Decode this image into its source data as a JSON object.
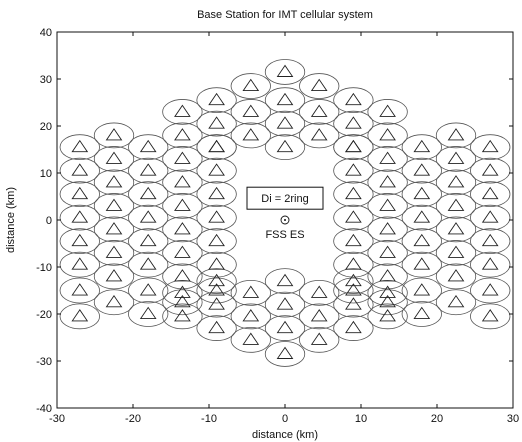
{
  "chart_data": {
    "type": "scatter",
    "title": "Base Station for IMT cellular system",
    "xlabel": "distance (km)",
    "ylabel": "distance (km)",
    "xlim": [
      -30,
      30
    ],
    "ylim": [
      -40,
      40
    ],
    "xticks": [
      -30,
      -20,
      -10,
      0,
      10,
      20,
      30
    ],
    "yticks": [
      -40,
      -30,
      -20,
      -10,
      0,
      10,
      20,
      30,
      40
    ],
    "xtick_labels": [
      "-30",
      "-20",
      "-10",
      "0",
      "10",
      "20",
      "30"
    ],
    "ytick_labels": [
      "-40",
      "-30",
      "-20",
      "-10",
      "0",
      "10",
      "20",
      "30",
      "40"
    ],
    "grid": false,
    "legend": "none",
    "cell_radius_km": 2.6,
    "series": [
      {
        "marker": "triangle",
        "x": [
          0,
          -4.5,
          4.5,
          -9,
          0,
          9,
          -13.5,
          -4.5,
          4.5,
          13.5,
          -9,
          0,
          9,
          -13.5,
          -4.5,
          4.5,
          13.5,
          -9,
          0,
          9,
          -27,
          -22.5,
          -18,
          -13.5,
          -9,
          9,
          13.5,
          18,
          22.5,
          27,
          -27,
          -22.5,
          -18,
          -13.5,
          -9,
          9,
          13.5,
          18,
          22.5,
          27,
          -27,
          -22.5,
          -18,
          -13.5,
          -9,
          9,
          13.5,
          18,
          22.5,
          27,
          -27,
          -22.5,
          -18,
          -13.5,
          -9,
          9,
          13.5,
          18,
          22.5,
          27,
          -27,
          -22.5,
          -18,
          -13.5,
          -9,
          9,
          13.5,
          18,
          22.5,
          27,
          -27,
          -22.5,
          -18,
          -13.5,
          -9,
          9,
          13.5,
          18,
          22.5,
          27,
          -27,
          -22.5,
          -18,
          -13.5,
          -9,
          9,
          13.5,
          18,
          22.5,
          27,
          -22.5,
          -18,
          18,
          22.5,
          -27,
          27,
          -9,
          0,
          9,
          -13.5,
          -4.5,
          4.5,
          13.5,
          -9,
          0,
          9,
          -13.5,
          -4.5,
          4.5,
          13.5,
          -9,
          0,
          9,
          -4.5,
          4.5,
          0
        ],
        "y": [
          31.5,
          28.5,
          28.5,
          25.5,
          25.5,
          25.5,
          23,
          23,
          23,
          23,
          20.5,
          20.5,
          20.5,
          18,
          18,
          18,
          18,
          15.5,
          15.5,
          15.5,
          15.5,
          18,
          15.5,
          13,
          15.5,
          15.5,
          13,
          15.5,
          18,
          15.5,
          10.5,
          13,
          10.5,
          8,
          10.5,
          10.5,
          8,
          10.5,
          13,
          10.5,
          5.5,
          8,
          5.5,
          3,
          5.5,
          5.5,
          3,
          5.5,
          8,
          5.5,
          0.5,
          3,
          0.5,
          -2,
          0.5,
          0.5,
          -2,
          0.5,
          3,
          0.5,
          -4.5,
          -2,
          -4.5,
          -7,
          -4.5,
          -4.5,
          -7,
          -4.5,
          -2,
          -4.5,
          -9.5,
          -7,
          -9.5,
          -12,
          -9.5,
          -9.5,
          -12,
          -9.5,
          -7,
          -9.5,
          -15,
          -12,
          -15,
          -17.5,
          -15,
          -15,
          -17.5,
          -15,
          -12,
          -15,
          -17.5,
          -20,
          -20,
          -17.5,
          -20.5,
          -20.5,
          -13,
          -13,
          -13,
          -15.5,
          -15.5,
          -15.5,
          -15.5,
          -18,
          -18,
          -18,
          -20.5,
          -20.5,
          -20.5,
          -20.5,
          -23,
          -23,
          -23,
          -25.5,
          -25.5,
          -28.5
        ]
      }
    ],
    "annotations": [
      {
        "text": "Di = 2ring",
        "x": 0,
        "y": 4,
        "boxed": true
      },
      {
        "text": "FSS ES",
        "x": 0,
        "y": -2.5,
        "marker": "circle-dot",
        "mx": 0,
        "my": 0
      }
    ]
  }
}
